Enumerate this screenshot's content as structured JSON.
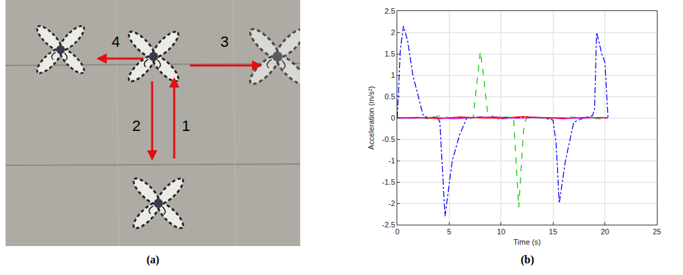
{
  "panel_a": {
    "label": "(a)",
    "arrow_labels": [
      "1",
      "2",
      "3",
      "4"
    ]
  },
  "panel_b_label": "(b)",
  "chart_data": {
    "type": "line",
    "x_label": "Time (s)",
    "y_label": "Acceleration (m/s²)",
    "xlim": [
      0,
      25
    ],
    "xticks": [
      0,
      5,
      10,
      15,
      20,
      25
    ],
    "ylim": [
      -2.5,
      2.5
    ],
    "yticks": [
      -2.5,
      -2,
      -1.5,
      -1,
      -0.5,
      0,
      0.5,
      1,
      1.5,
      2,
      2.5
    ],
    "grid": true,
    "series": [
      {
        "color": "#0000ff",
        "line_style": "dashdot",
        "x": [
          0,
          0.3,
          0.6,
          1.0,
          1.5,
          2.0,
          2.5,
          3.0,
          3.5,
          3.9,
          4.1,
          4.6,
          5.0,
          5.3,
          6.0,
          6.7,
          8.0,
          10.0,
          12.0,
          14.0,
          15.0,
          15.3,
          15.6,
          16.0,
          16.2,
          17.0,
          18.0,
          18.8,
          19.0,
          19.2,
          19.7,
          20.0,
          20.3
        ],
        "values": [
          0,
          1.6,
          2.15,
          1.8,
          1.0,
          0.5,
          0.05,
          0,
          0.02,
          0,
          -0.1,
          -2.3,
          -1.5,
          -1.0,
          -0.4,
          0,
          0.02,
          -0.02,
          0.01,
          0,
          -0.05,
          -0.6,
          -2.0,
          -1.3,
          -1.0,
          -0.1,
          0,
          0.05,
          0.2,
          2.0,
          1.5,
          1.3,
          0
        ]
      },
      {
        "color": "#00cc00",
        "line_style": "dash",
        "x": [
          0,
          1.0,
          2.0,
          3.0,
          4.0,
          5.0,
          6.0,
          7.0,
          7.3,
          7.7,
          8.0,
          8.3,
          8.7,
          9.5,
          10.5,
          11.2,
          11.5,
          11.7,
          12.0,
          12.2,
          12.5,
          13.5,
          15.0,
          16.5,
          18.0,
          19.5,
          20.3
        ],
        "values": [
          0,
          -0.02,
          0.02,
          -0.03,
          0.05,
          0,
          0.02,
          -0.02,
          0,
          0.9,
          1.55,
          1.0,
          0.1,
          0,
          0.02,
          0,
          -1.2,
          -2.1,
          -0.9,
          -0.2,
          0.05,
          0,
          -0.02,
          0.02,
          0,
          -0.02,
          0
        ]
      },
      {
        "color": "#ff0000",
        "line_style": "solid",
        "x": [
          0,
          2.0,
          4.0,
          6.0,
          8.0,
          10.0,
          12.0,
          14.0,
          16.0,
          18.0,
          20.3
        ],
        "values": [
          0,
          0.01,
          -0.02,
          0.02,
          0,
          -0.01,
          0.03,
          0,
          -0.02,
          0.01,
          0
        ]
      },
      {
        "color": "#cc00cc",
        "line_style": "solid",
        "x": [
          0,
          1.5,
          3.5,
          5.5,
          7.5,
          9.5,
          11.5,
          13.5,
          15.5,
          17.5,
          19.5,
          20.3
        ],
        "values": [
          0,
          -0.01,
          0.01,
          -0.02,
          0.01,
          0.02,
          -0.01,
          0.01,
          0,
          -0.01,
          0.01,
          0
        ]
      }
    ]
  }
}
